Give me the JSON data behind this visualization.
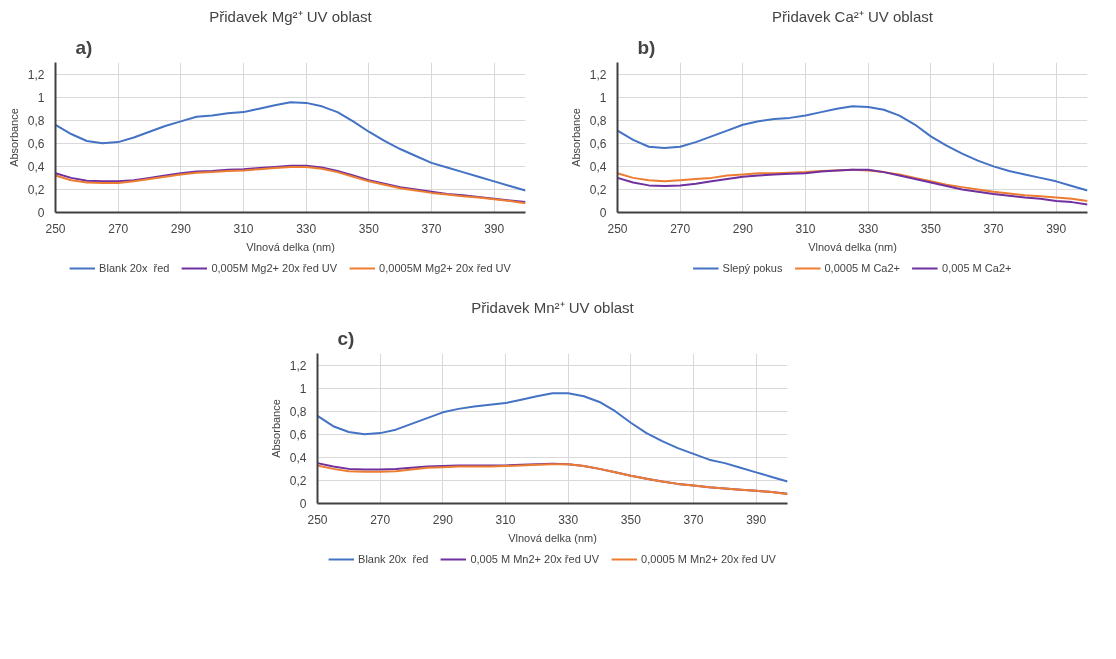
{
  "chart_data": [
    {
      "type": "line",
      "title": "Přidavek Mg²⁺ UV oblast",
      "xlabel": "Vlnová delka (nm)",
      "ylabel": "Absorbance",
      "annotations": [
        "a)"
      ],
      "xlim": [
        250,
        400
      ],
      "ylim": [
        0,
        1.3
      ],
      "xticks": [
        250,
        270,
        290,
        310,
        330,
        350,
        370,
        390
      ],
      "yticks": [
        {
          "value": 0,
          "label": "0"
        },
        {
          "value": 0.2,
          "label": "0,2"
        },
        {
          "value": 0.4,
          "label": "0,4"
        },
        {
          "value": 0.6,
          "label": "0,6"
        },
        {
          "value": 0.8,
          "label": "0,8"
        },
        {
          "value": 1,
          "label": "1"
        },
        {
          "value": 1.2,
          "label": "1,2"
        }
      ],
      "grid": true,
      "legend": "bottom",
      "x": [
        250,
        255,
        260,
        265,
        270,
        275,
        280,
        285,
        290,
        295,
        300,
        305,
        310,
        315,
        320,
        325,
        330,
        335,
        340,
        345,
        350,
        355,
        360,
        365,
        370,
        375,
        380,
        385,
        390,
        395,
        400
      ],
      "series": [
        {
          "name": "Blank 20x  řed",
          "color": "#4472c4",
          "values": [
            0.76,
            0.68,
            0.62,
            0.6,
            0.61,
            0.65,
            0.7,
            0.75,
            0.79,
            0.83,
            0.84,
            0.86,
            0.87,
            0.9,
            0.93,
            0.955,
            0.95,
            0.92,
            0.87,
            0.79,
            0.7,
            0.62,
            0.55,
            0.49,
            0.43,
            0.39,
            0.35,
            0.31,
            0.27,
            0.23,
            0.19
          ]
        },
        {
          "name": "0,005M Mg2+ 20x řed UV",
          "color": "#7030a0",
          "values": [
            0.34,
            0.3,
            0.275,
            0.27,
            0.27,
            0.28,
            0.3,
            0.32,
            0.34,
            0.355,
            0.36,
            0.37,
            0.375,
            0.385,
            0.395,
            0.405,
            0.405,
            0.39,
            0.36,
            0.32,
            0.28,
            0.25,
            0.22,
            0.2,
            0.18,
            0.16,
            0.15,
            0.135,
            0.12,
            0.105,
            0.09
          ]
        },
        {
          "name": "0,0005M Mg2+ 20x řed UV",
          "color": "#ed7d31",
          "values": [
            0.32,
            0.28,
            0.26,
            0.255,
            0.255,
            0.27,
            0.29,
            0.31,
            0.33,
            0.345,
            0.35,
            0.36,
            0.365,
            0.375,
            0.385,
            0.395,
            0.395,
            0.38,
            0.35,
            0.31,
            0.27,
            0.24,
            0.21,
            0.19,
            0.17,
            0.155,
            0.14,
            0.13,
            0.115,
            0.1,
            0.08
          ]
        }
      ]
    },
    {
      "type": "line",
      "title": "Přidavek Ca²⁺ UV oblast",
      "xlabel": "Vlnová delka (nm)",
      "ylabel": "Absorbance",
      "annotations": [
        "b)"
      ],
      "xlim": [
        250,
        400
      ],
      "ylim": [
        0,
        1.3
      ],
      "xticks": [
        250,
        270,
        290,
        310,
        330,
        350,
        370,
        390
      ],
      "yticks": [
        {
          "value": 0,
          "label": "0"
        },
        {
          "value": 0.2,
          "label": "0,2"
        },
        {
          "value": 0.4,
          "label": "0,4"
        },
        {
          "value": 0.6,
          "label": "0,6"
        },
        {
          "value": 0.8,
          "label": "0,8"
        },
        {
          "value": 1,
          "label": "1"
        },
        {
          "value": 1.2,
          "label": "1,2"
        }
      ],
      "grid": true,
      "legend": "bottom",
      "x": [
        250,
        255,
        260,
        265,
        270,
        275,
        280,
        285,
        290,
        295,
        300,
        305,
        310,
        315,
        320,
        325,
        330,
        335,
        340,
        345,
        350,
        355,
        360,
        365,
        370,
        375,
        380,
        385,
        390,
        395,
        400
      ],
      "series": [
        {
          "name": "Slepý pokus",
          "color": "#4472c4",
          "values": [
            0.71,
            0.63,
            0.57,
            0.56,
            0.57,
            0.61,
            0.66,
            0.71,
            0.76,
            0.79,
            0.81,
            0.82,
            0.84,
            0.87,
            0.9,
            0.92,
            0.915,
            0.89,
            0.84,
            0.76,
            0.66,
            0.58,
            0.51,
            0.45,
            0.4,
            0.36,
            0.33,
            0.3,
            0.27,
            0.23,
            0.19
          ]
        },
        {
          "name": "0,0005 M Ca2+",
          "color": "#ed7d31",
          "values": [
            0.34,
            0.3,
            0.28,
            0.27,
            0.28,
            0.29,
            0.3,
            0.32,
            0.33,
            0.34,
            0.34,
            0.345,
            0.35,
            0.36,
            0.365,
            0.37,
            0.365,
            0.35,
            0.33,
            0.3,
            0.27,
            0.24,
            0.22,
            0.2,
            0.18,
            0.165,
            0.15,
            0.14,
            0.13,
            0.12,
            0.1
          ]
        },
        {
          "name": "0,005 M Ca2+",
          "color": "#7030a0",
          "values": [
            0.3,
            0.26,
            0.235,
            0.23,
            0.235,
            0.25,
            0.27,
            0.29,
            0.31,
            0.32,
            0.33,
            0.335,
            0.34,
            0.355,
            0.365,
            0.37,
            0.37,
            0.35,
            0.32,
            0.29,
            0.26,
            0.23,
            0.2,
            0.18,
            0.16,
            0.145,
            0.13,
            0.12,
            0.1,
            0.09,
            0.07
          ]
        }
      ]
    },
    {
      "type": "line",
      "title": "Přidavek Mn²⁺ UV oblast",
      "xlabel": "Vlnová delka (nm)",
      "ylabel": "Absorbance",
      "annotations": [
        "c)"
      ],
      "xlim": [
        250,
        400
      ],
      "ylim": [
        0,
        1.3
      ],
      "xticks": [
        250,
        270,
        290,
        310,
        330,
        350,
        370,
        390
      ],
      "yticks": [
        {
          "value": 0,
          "label": "0"
        },
        {
          "value": 0.2,
          "label": "0,2"
        },
        {
          "value": 0.4,
          "label": "0,4"
        },
        {
          "value": 0.6,
          "label": "0,6"
        },
        {
          "value": 0.8,
          "label": "0,8"
        },
        {
          "value": 1,
          "label": "1"
        },
        {
          "value": 1.2,
          "label": "1,2"
        }
      ],
      "grid": true,
      "legend": "bottom",
      "x": [
        250,
        255,
        260,
        265,
        270,
        275,
        280,
        285,
        290,
        295,
        300,
        305,
        310,
        315,
        320,
        325,
        330,
        335,
        340,
        345,
        350,
        355,
        360,
        365,
        370,
        375,
        380,
        385,
        390,
        395,
        400
      ],
      "series": [
        {
          "name": "Blank 20x  řed",
          "color": "#4472c4",
          "values": [
            0.76,
            0.67,
            0.62,
            0.6,
            0.61,
            0.64,
            0.69,
            0.74,
            0.79,
            0.82,
            0.84,
            0.855,
            0.87,
            0.9,
            0.93,
            0.955,
            0.955,
            0.93,
            0.88,
            0.8,
            0.7,
            0.61,
            0.54,
            0.48,
            0.43,
            0.38,
            0.35,
            0.31,
            0.27,
            0.23,
            0.19
          ]
        },
        {
          "name": "0,005 M Mn2+ 20x řed UV",
          "color": "#7030a0",
          "values": [
            0.35,
            0.32,
            0.3,
            0.295,
            0.295,
            0.3,
            0.31,
            0.32,
            0.325,
            0.33,
            0.33,
            0.33,
            0.33,
            0.335,
            0.34,
            0.345,
            0.34,
            0.325,
            0.3,
            0.27,
            0.24,
            0.215,
            0.19,
            0.17,
            0.155,
            0.14,
            0.13,
            0.12,
            0.11,
            0.1,
            0.085
          ]
        },
        {
          "name": "0,0005 M Mn2+ 20x řed UV",
          "color": "#ed7d31",
          "values": [
            0.33,
            0.3,
            0.28,
            0.275,
            0.275,
            0.28,
            0.295,
            0.31,
            0.315,
            0.32,
            0.32,
            0.32,
            0.325,
            0.33,
            0.335,
            0.34,
            0.34,
            0.325,
            0.3,
            0.27,
            0.24,
            0.215,
            0.19,
            0.17,
            0.155,
            0.14,
            0.13,
            0.12,
            0.11,
            0.1,
            0.08
          ]
        }
      ]
    }
  ]
}
